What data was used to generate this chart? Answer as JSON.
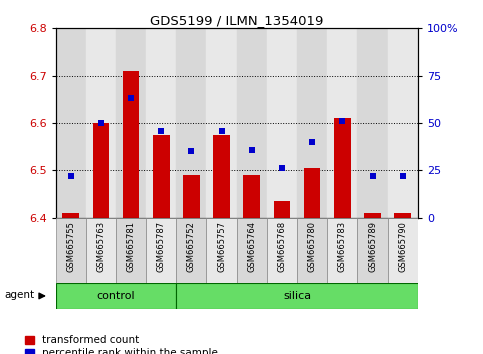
{
  "title": "GDS5199 / ILMN_1354019",
  "samples": [
    "GSM665755",
    "GSM665763",
    "GSM665781",
    "GSM665787",
    "GSM665752",
    "GSM665757",
    "GSM665764",
    "GSM665768",
    "GSM665780",
    "GSM665783",
    "GSM665789",
    "GSM665790"
  ],
  "transformed_count": [
    6.41,
    6.6,
    6.71,
    6.575,
    6.49,
    6.575,
    6.49,
    6.435,
    6.505,
    6.61,
    6.41,
    6.41
  ],
  "percentile_rank": [
    22,
    50,
    63,
    46,
    35,
    46,
    36,
    26,
    40,
    51,
    22,
    22
  ],
  "group": [
    "control",
    "control",
    "control",
    "control",
    "silica",
    "silica",
    "silica",
    "silica",
    "silica",
    "silica",
    "silica",
    "silica"
  ],
  "ylim_left": [
    6.4,
    6.8
  ],
  "ylim_right": [
    0,
    100
  ],
  "yticks_left": [
    6.4,
    6.5,
    6.6,
    6.7,
    6.8
  ],
  "yticks_right": [
    0,
    25,
    50,
    75,
    100
  ],
  "bar_color": "#cc0000",
  "dot_color": "#0000cc",
  "bar_bottom": 6.4,
  "bar_width": 0.55,
  "control_color": "#66dd66",
  "silica_color": "#66dd66",
  "legend_items": [
    "transformed count",
    "percentile rank within the sample"
  ],
  "legend_colors": [
    "#cc0000",
    "#0000cc"
  ],
  "agent_label": "agent",
  "plot_bg_color": "#ffffff",
  "grid_color": "#000000",
  "right_axis_color": "#0000cc",
  "left_axis_color": "#cc0000",
  "col_bg_even": "#d8d8d8",
  "col_bg_odd": "#e8e8e8"
}
